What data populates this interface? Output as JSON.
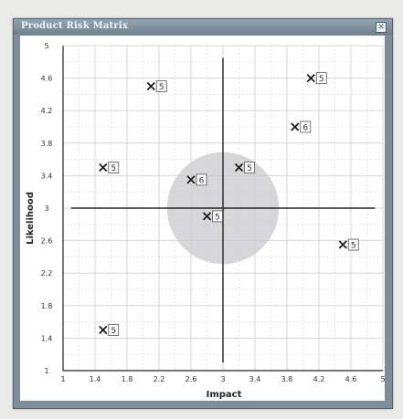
{
  "window": {
    "title": "Product Risk Matrix",
    "close_glyph": "✕"
  },
  "chart_data": {
    "type": "scatter",
    "title": "",
    "xlabel": "Impact",
    "ylabel": "Likelihood",
    "xlim": [
      1,
      5
    ],
    "ylim": [
      1,
      5
    ],
    "xticks": [
      "1",
      "1.4",
      "1.8",
      "2.2",
      "2.6",
      "3",
      "3.4",
      "3.8",
      "4.2",
      "4.6",
      "5"
    ],
    "yticks": [
      "1",
      "1.4",
      "1.8",
      "2.2",
      "2.6",
      "3",
      "3.4",
      "3.8",
      "4.2",
      "4.6",
      "5"
    ],
    "grid": true,
    "crosshair": {
      "x": 3,
      "y": 3
    },
    "highlight_circle": {
      "cx": 3,
      "cy": 3,
      "radius_x": 0.7
    },
    "marker": "x",
    "points": [
      {
        "x": 2.1,
        "y": 4.5,
        "label": "5"
      },
      {
        "x": 4.1,
        "y": 4.6,
        "label": "5"
      },
      {
        "x": 3.9,
        "y": 4.0,
        "label": "6"
      },
      {
        "x": 1.5,
        "y": 3.5,
        "label": "5"
      },
      {
        "x": 3.2,
        "y": 3.5,
        "label": "5"
      },
      {
        "x": 2.6,
        "y": 3.35,
        "label": "6"
      },
      {
        "x": 2.8,
        "y": 2.9,
        "label": "5"
      },
      {
        "x": 4.5,
        "y": 2.55,
        "label": "5"
      },
      {
        "x": 1.5,
        "y": 1.5,
        "label": "5"
      }
    ],
    "colors": {
      "grid": "#d6d6d6",
      "axes": "#222222",
      "circle": "#c9c9cd",
      "marker": "#1a1a1a"
    }
  }
}
